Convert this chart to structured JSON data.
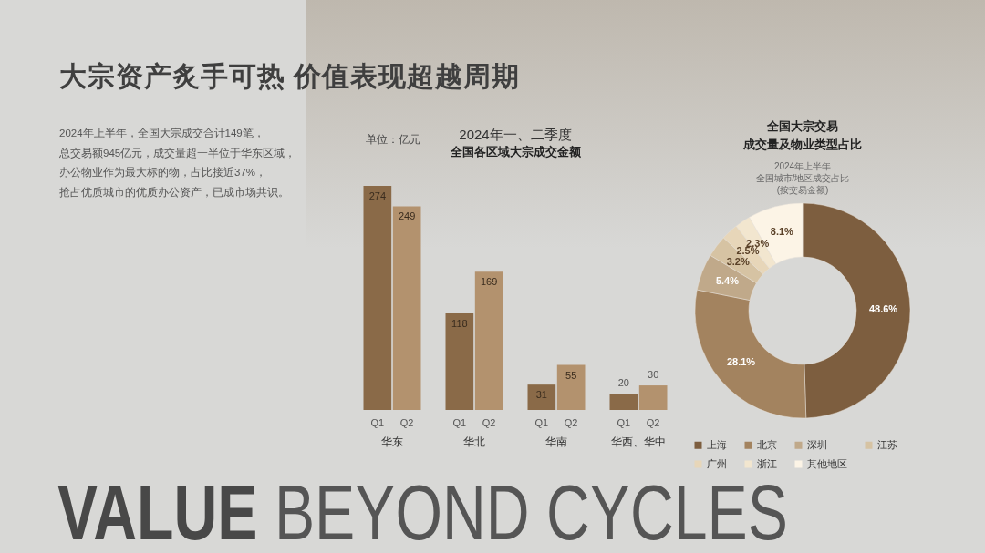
{
  "chart_data": [
    {
      "type": "other",
      "title": "大宗资产炙手可热 价值表现超越周期",
      "annotations": [
        "2024年上半年，全国大宗成交合计149笔，",
        "总交易额945亿元，成交量超一半位于华东区域，",
        "办公物业作为最大标的物，占比接近37%，",
        "抢占优质城市的优质办公资产，已成市场共识。",
        "VALUE BEYOND CYCLES"
      ]
    },
    {
      "type": "bar",
      "title": "2024年一、二季度",
      "subtitle": "全国各区域大宗成交金额",
      "ylabel": "单位：亿元",
      "categories": [
        "华东",
        "华北",
        "华南",
        "华西、华中"
      ],
      "series": [
        {
          "name": "Q1",
          "color": "#8a6a48",
          "values": [
            274,
            118,
            31,
            20
          ]
        },
        {
          "name": "Q2",
          "color": "#b3926e",
          "values": [
            249,
            169,
            55,
            30
          ]
        }
      ],
      "data_labels": true,
      "tick_labels": "x"
    },
    {
      "type": "donut",
      "title": "全国大宗交易成交量及物业类型占比",
      "subtitle": "2024年上半年",
      "annotations": [
        "全国城市/地区成交占比",
        "(按交易金额)"
      ],
      "categories": [
        "上海",
        "北京",
        "深圳",
        "江苏",
        "广州",
        "浙江",
        "其他地区"
      ],
      "values": [
        48.6,
        28.1,
        5.4,
        3.2,
        2.5,
        2.3,
        8.1
      ],
      "colors": [
        "#7d5e3f",
        "#a3835f",
        "#c0a98a",
        "#d6c3a3",
        "#e7d6b9",
        "#f2e6cf",
        "#fcf4e6"
      ],
      "value_labels": [
        "48.6%",
        "28.1%",
        "5.4%",
        "3.2%",
        "2.5%",
        "2.3%",
        "8.1%"
      ],
      "legend": "bottom"
    }
  ]
}
